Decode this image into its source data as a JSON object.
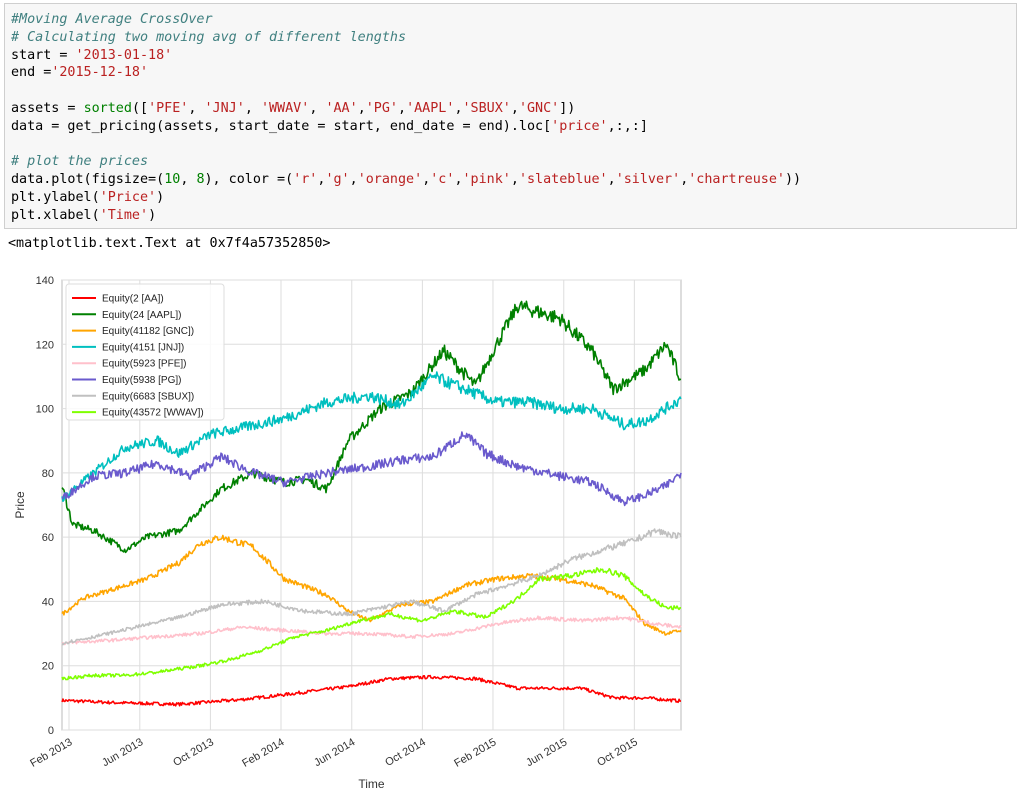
{
  "notebook": {
    "code_lines": [
      [
        {
          "t": "#Moving Average CrossOver",
          "c": "cm"
        }
      ],
      [
        {
          "t": "# Calculating two moving avg of different lengths",
          "c": "cm"
        }
      ],
      [
        {
          "t": "start = ",
          "c": ""
        },
        {
          "t": "'2013-01-18'",
          "c": "st"
        }
      ],
      [
        {
          "t": "end =",
          "c": ""
        },
        {
          "t": "'2015-12-18'",
          "c": "st"
        }
      ],
      [],
      [
        {
          "t": "assets = ",
          "c": ""
        },
        {
          "t": "sorted",
          "c": "bi"
        },
        {
          "t": "([",
          "c": ""
        },
        {
          "t": "'PFE'",
          "c": "st"
        },
        {
          "t": ", ",
          "c": ""
        },
        {
          "t": "'JNJ'",
          "c": "st"
        },
        {
          "t": ", ",
          "c": ""
        },
        {
          "t": "'WWAV'",
          "c": "st"
        },
        {
          "t": ", ",
          "c": ""
        },
        {
          "t": "'AA'",
          "c": "st"
        },
        {
          "t": ",",
          "c": ""
        },
        {
          "t": "'PG'",
          "c": "st"
        },
        {
          "t": ",",
          "c": ""
        },
        {
          "t": "'AAPL'",
          "c": "st"
        },
        {
          "t": ",",
          "c": ""
        },
        {
          "t": "'SBUX'",
          "c": "st"
        },
        {
          "t": ",",
          "c": ""
        },
        {
          "t": "'GNC'",
          "c": "st"
        },
        {
          "t": "])",
          "c": ""
        }
      ],
      [
        {
          "t": "data = get_pricing(assets, start_date = start, end_date = end).loc[",
          "c": ""
        },
        {
          "t": "'price'",
          "c": "st"
        },
        {
          "t": ",:,:]",
          "c": ""
        }
      ],
      [],
      [
        {
          "t": "# plot the prices",
          "c": "cm"
        }
      ],
      [
        {
          "t": "data.plot(figsize=(",
          "c": ""
        },
        {
          "t": "10",
          "c": "bi"
        },
        {
          "t": ", ",
          "c": ""
        },
        {
          "t": "8",
          "c": "bi"
        },
        {
          "t": "), color =(",
          "c": ""
        },
        {
          "t": "'r'",
          "c": "st"
        },
        {
          "t": ",",
          "c": ""
        },
        {
          "t": "'g'",
          "c": "st"
        },
        {
          "t": ",",
          "c": ""
        },
        {
          "t": "'orange'",
          "c": "st"
        },
        {
          "t": ",",
          "c": ""
        },
        {
          "t": "'c'",
          "c": "st"
        },
        {
          "t": ",",
          "c": ""
        },
        {
          "t": "'pink'",
          "c": "st"
        },
        {
          "t": ",",
          "c": ""
        },
        {
          "t": "'slateblue'",
          "c": "st"
        },
        {
          "t": ",",
          "c": ""
        },
        {
          "t": "'silver'",
          "c": "st"
        },
        {
          "t": ",",
          "c": ""
        },
        {
          "t": "'chartreuse'",
          "c": "st"
        },
        {
          "t": "))",
          "c": ""
        }
      ],
      [
        {
          "t": "plt.ylabel(",
          "c": ""
        },
        {
          "t": "'Price'",
          "c": "st"
        },
        {
          "t": ")",
          "c": ""
        }
      ],
      [
        {
          "t": "plt.xlabel(",
          "c": ""
        },
        {
          "t": "'Time'",
          "c": "st"
        },
        {
          "t": ")",
          "c": ""
        }
      ]
    ],
    "output_text": "<matplotlib.text.Text at 0x7f4a57352850>"
  },
  "chart_data": {
    "type": "line",
    "xlabel": "Time",
    "ylabel": "Price",
    "ylim": [
      0,
      140
    ],
    "yticks": [
      0,
      20,
      40,
      60,
      80,
      100,
      120,
      140
    ],
    "xlim": [
      2013.05,
      2015.97
    ],
    "xticks": [
      {
        "label": "Feb 2013",
        "x": 2013.083
      },
      {
        "label": "Jun 2013",
        "x": 2013.417
      },
      {
        "label": "Oct 2013",
        "x": 2013.75
      },
      {
        "label": "Feb 2014",
        "x": 2014.083
      },
      {
        "label": "Jun 2014",
        "x": 2014.417
      },
      {
        "label": "Oct 2014",
        "x": 2014.75
      },
      {
        "label": "Feb 2015",
        "x": 2015.083
      },
      {
        "label": "Jun 2015",
        "x": 2015.417
      },
      {
        "label": "Oct 2015",
        "x": 2015.75
      }
    ],
    "grid": true,
    "legend_position": "top-left",
    "series": [
      {
        "name": "Equity(2 [AA])",
        "color": "#ff0000",
        "x": [
          2013.05,
          2013.3,
          2013.6,
          2013.9,
          2014.1,
          2014.4,
          2014.6,
          2014.8,
          2015.0,
          2015.2,
          2015.5,
          2015.65,
          2015.8,
          2015.97
        ],
        "y": [
          9.2,
          8.5,
          8.0,
          9.5,
          11.0,
          13.5,
          16.0,
          16.5,
          16.0,
          13.0,
          13.0,
          10.0,
          10.0,
          9.0
        ]
      },
      {
        "name": "Equity(24 [AAPL])",
        "color": "#008000",
        "x": [
          2013.05,
          2013.1,
          2013.2,
          2013.35,
          2013.45,
          2013.6,
          2013.8,
          2013.95,
          2014.1,
          2014.2,
          2014.3,
          2014.4,
          2014.55,
          2014.7,
          2014.85,
          2015.0,
          2015.1,
          2015.2,
          2015.4,
          2015.55,
          2015.65,
          2015.8,
          2015.9,
          2015.97
        ],
        "y": [
          76,
          64,
          62,
          56,
          60,
          62,
          75,
          80,
          77,
          78,
          75,
          90,
          100,
          105,
          118,
          107,
          120,
          132,
          128,
          118,
          106,
          112,
          120,
          109
        ]
      },
      {
        "name": "Equity(41182 [GNC])",
        "color": "#ffa500",
        "x": [
          2013.05,
          2013.15,
          2013.3,
          2013.45,
          2013.6,
          2013.7,
          2013.8,
          2013.95,
          2014.1,
          2014.3,
          2014.4,
          2014.5,
          2014.65,
          2014.8,
          2014.95,
          2015.1,
          2015.25,
          2015.4,
          2015.55,
          2015.7,
          2015.8,
          2015.9,
          2015.97
        ],
        "y": [
          36,
          41,
          44,
          47,
          52,
          58,
          60,
          57,
          47,
          42,
          37,
          34,
          39,
          40,
          45,
          47,
          48,
          47,
          45,
          41,
          33,
          30,
          31
        ]
      },
      {
        "name": "Equity(4151 [JNJ])",
        "color": "#00bfbf",
        "x": [
          2013.05,
          2013.2,
          2013.35,
          2013.5,
          2013.6,
          2013.75,
          2013.9,
          2014.1,
          2014.3,
          2014.5,
          2014.65,
          2014.8,
          2014.95,
          2015.1,
          2015.25,
          2015.4,
          2015.55,
          2015.7,
          2015.8,
          2015.97
        ],
        "y": [
          72,
          80,
          88,
          90,
          86,
          92,
          94,
          97,
          102,
          104,
          101,
          110,
          106,
          102,
          102,
          100,
          100,
          95,
          96,
          103
        ]
      },
      {
        "name": "Equity(5923 [PFE])",
        "color": "#ffc0cb",
        "x": [
          2013.05,
          2013.3,
          2013.5,
          2013.7,
          2013.9,
          2014.1,
          2014.3,
          2014.5,
          2014.7,
          2014.9,
          2015.1,
          2015.3,
          2015.5,
          2015.7,
          2015.85,
          2015.97
        ],
        "y": [
          27,
          28,
          29,
          30,
          32,
          31,
          30,
          30,
          29,
          30,
          33,
          35,
          34,
          35,
          33,
          32
        ]
      },
      {
        "name": "Equity(5938 [PG])",
        "color": "#6a5acd",
        "x": [
          2013.05,
          2013.2,
          2013.35,
          2013.5,
          2013.65,
          2013.8,
          2013.95,
          2014.1,
          2014.3,
          2014.5,
          2014.65,
          2014.8,
          2014.95,
          2015.05,
          2015.2,
          2015.4,
          2015.55,
          2015.7,
          2015.8,
          2015.9,
          2015.97
        ],
        "y": [
          72,
          79,
          80,
          83,
          79,
          85,
          80,
          77,
          80,
          82,
          84,
          85,
          92,
          86,
          82,
          79,
          77,
          71,
          73,
          76,
          80
        ]
      },
      {
        "name": "Equity(6683 [SBUX])",
        "color": "#c0c0c0",
        "x": [
          2013.05,
          2013.2,
          2013.4,
          2013.6,
          2013.8,
          2014.0,
          2014.2,
          2014.4,
          2014.55,
          2014.7,
          2014.85,
          2015.0,
          2015.15,
          2015.3,
          2015.45,
          2015.6,
          2015.75,
          2015.85,
          2015.97
        ],
        "y": [
          27,
          29,
          32,
          35,
          39,
          40,
          37,
          36,
          38,
          40,
          37,
          42,
          45,
          48,
          53,
          56,
          59,
          62,
          60
        ]
      },
      {
        "name": "Equity(43572 [WWAV])",
        "color": "#7fff00",
        "x": [
          2013.05,
          2013.2,
          2013.35,
          2013.5,
          2013.7,
          2013.85,
          2014.0,
          2014.15,
          2014.3,
          2014.45,
          2014.6,
          2014.75,
          2014.9,
          2015.05,
          2015.2,
          2015.3,
          2015.45,
          2015.6,
          2015.7,
          2015.8,
          2015.9,
          2015.97
        ],
        "y": [
          16,
          17,
          17,
          18,
          20,
          22,
          25,
          29,
          31,
          34,
          36,
          34,
          37,
          35,
          41,
          47,
          48,
          50,
          48,
          42,
          38,
          38
        ]
      }
    ]
  }
}
